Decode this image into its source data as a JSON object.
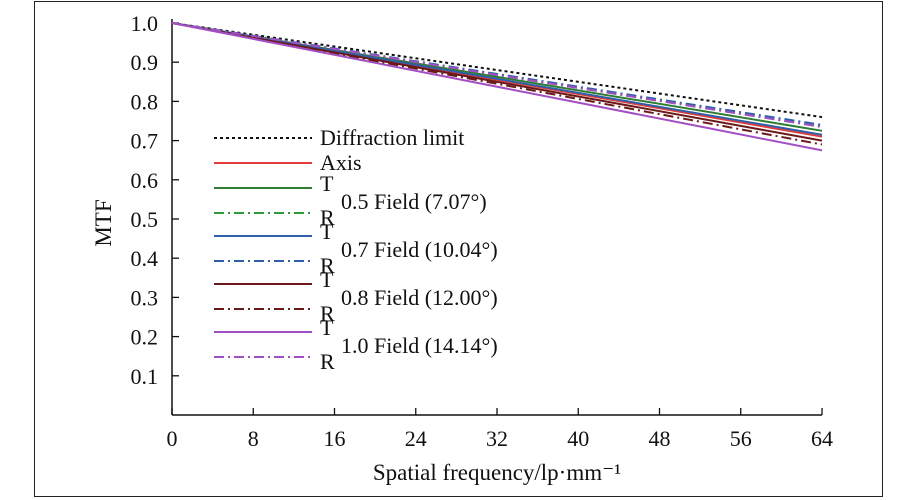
{
  "chart_data": {
    "type": "line",
    "title": "",
    "xlabel": "Spatial frequency/lp·mm⁻¹",
    "ylabel": "MTF",
    "xlim": [
      0,
      64
    ],
    "ylim": [
      0,
      1.0
    ],
    "x_ticks": [
      0,
      8,
      16,
      24,
      32,
      40,
      48,
      56,
      64
    ],
    "x_tick_labels": [
      "0",
      "8",
      "16",
      "24",
      "32",
      "40",
      "48",
      "56",
      "64"
    ],
    "y_ticks": [
      0.1,
      0.2,
      0.3,
      0.4,
      0.5,
      0.6,
      0.7,
      0.8,
      0.9,
      1.0
    ],
    "y_tick_labels": [
      "0.1",
      "0.2",
      "0.3",
      "0.4",
      "0.5",
      "0.6",
      "0.7",
      "0.8",
      "0.9",
      "1.0"
    ],
    "grid": false,
    "legend_position": "left-middle",
    "x": [
      0,
      64
    ],
    "series": [
      {
        "name": "Diffraction limit",
        "values": [
          1.0,
          0.76
        ],
        "color": "#111111",
        "style": "dotted"
      },
      {
        "name": "Axis",
        "values": [
          1.0,
          0.71
        ],
        "color": "#e03c3c",
        "style": "solid"
      },
      {
        "name": "0.5 Field (7.07°) T",
        "values": [
          1.0,
          0.725
        ],
        "color": "#2e7d32",
        "style": "solid"
      },
      {
        "name": "0.5 Field (7.07°) R",
        "values": [
          1.0,
          0.735
        ],
        "color": "#2e9a3a",
        "style": "dashdot"
      },
      {
        "name": "0.7 Field (10.04°) T",
        "values": [
          1.0,
          0.715
        ],
        "color": "#2f5fa8",
        "style": "solid"
      },
      {
        "name": "0.7 Field (10.04°) R",
        "values": [
          1.0,
          0.74
        ],
        "color": "#2f5fa8",
        "style": "dashdot"
      },
      {
        "name": "0.8 Field (12.00°) T",
        "values": [
          1.0,
          0.7
        ],
        "color": "#6b1a1a",
        "style": "solid"
      },
      {
        "name": "0.8 Field (12.00°) R",
        "values": [
          1.0,
          0.69
        ],
        "color": "#6b1a1a",
        "style": "dashdot"
      },
      {
        "name": "1.0 Field (14.14°) T",
        "values": [
          1.0,
          0.675
        ],
        "color": "#a24fc4",
        "style": "solid"
      },
      {
        "name": "1.0 Field (14.14°) R",
        "values": [
          1.0,
          0.735
        ],
        "color": "#a24fc4",
        "style": "dashdot"
      }
    ],
    "legend": {
      "entries": [
        {
          "label": "Diffraction limit",
          "series": [
            "Diffraction limit"
          ]
        },
        {
          "label": "Axis",
          "series": [
            "Axis"
          ]
        },
        {
          "label": "0.5 Field (7.07°)",
          "series": [
            "0.5 Field (7.07°) T",
            "0.5 Field (7.07°) R"
          ]
        },
        {
          "label": "0.7 Field (10.04°)",
          "series": [
            "0.7 Field (10.04°) T",
            "0.7 Field (10.04°) R"
          ]
        },
        {
          "label": "0.8 Field (12.00°)",
          "series": [
            "0.8 Field (12.00°) T",
            "0.8 Field (12.00°) R"
          ]
        },
        {
          "label": "1.0 Field (14.14°)",
          "series": [
            "1.0 Field (14.14°) T",
            "1.0 Field (14.14°) R"
          ]
        }
      ],
      "t_label": "T",
      "r_label": "R"
    }
  }
}
